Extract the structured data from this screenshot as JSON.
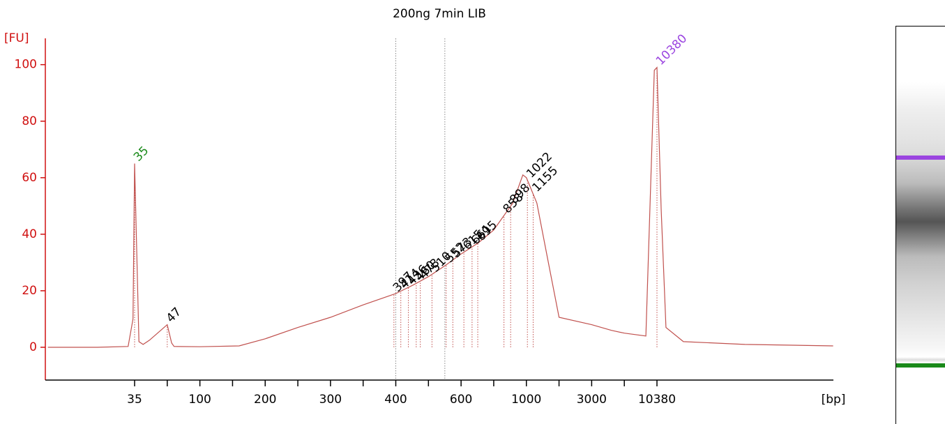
{
  "chart_data": {
    "type": "line",
    "title": "200ng 7min LIB",
    "ylabel": "[FU]",
    "xlabel": "[bp]",
    "x": [
      16,
      25,
      33,
      34.5,
      35,
      36.4,
      37.8,
      40,
      47,
      52,
      55,
      100,
      159,
      200,
      250,
      300,
      350,
      400,
      450,
      500,
      550,
      600,
      700,
      800,
      911,
      976,
      1000,
      1250,
      1564,
      2000,
      3000,
      5000,
      7000,
      9080,
      10050,
      10380,
      10920,
      11570,
      14280,
      30000,
      87000
    ],
    "y": [
      0,
      0,
      0.3,
      10,
      65,
      2,
      1,
      2.5,
      8,
      1.5,
      0.3,
      0.2,
      0.5,
      3,
      7,
      10.6,
      15,
      19,
      22,
      25,
      29,
      33,
      37,
      41.5,
      51,
      61,
      60,
      51,
      31.6,
      10.6,
      8,
      6,
      5,
      4,
      98,
      99,
      49,
      7,
      2,
      1,
      0.5
    ],
    "color": "#c0504d",
    "ylim": [
      -11.6,
      109.3
    ],
    "yticks": [
      0,
      20,
      40,
      60,
      80,
      100
    ],
    "xticks": [
      35,
      {
        "value": 47,
        "label": null
      },
      100,
      {
        "value": 150,
        "label": null
      },
      200,
      {
        "value": 250,
        "label": null
      },
      300,
      {
        "value": 350,
        "label": null
      },
      400,
      {
        "value": 500,
        "label": null
      },
      600,
      {
        "value": 800,
        "label": null
      },
      1000,
      {
        "value": 2000,
        "label": null
      },
      3000,
      {
        "value": 7000,
        "label": null
      },
      10380
    ],
    "region": [
      400,
      548
    ],
    "peaks": [
      {
        "value": 35,
        "color": "#1a8a1a"
      },
      {
        "value": 47,
        "color": "#000000"
      },
      {
        "value": 397,
        "color": "#000000"
      },
      {
        "value": 414,
        "color": "#000000"
      },
      {
        "value": 436,
        "color": "#000000"
      },
      {
        "value": 460,
        "color": "#000000"
      },
      {
        "value": 473,
        "color": "#000000"
      },
      {
        "value": 510,
        "color": "#000000"
      },
      {
        "value": 552,
        "color": "#000000"
      },
      {
        "value": 573,
        "color": "#000000"
      },
      {
        "value": 615,
        "color": "#000000"
      },
      {
        "value": 661,
        "color": "#000000"
      },
      {
        "value": 695,
        "color": "#000000"
      },
      {
        "value": 858,
        "color": "#000000"
      },
      {
        "value": 898,
        "color": "#000000"
      },
      {
        "value": 1022,
        "color": "#000000"
      },
      {
        "value": 1155,
        "color": "#000000"
      },
      {
        "value": 10380,
        "color": "#9b45e0"
      }
    ]
  }
}
